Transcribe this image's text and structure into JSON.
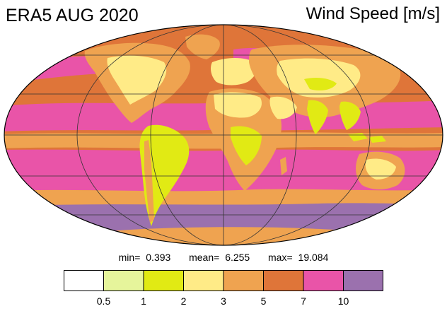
{
  "header": {
    "title_left": "ERA5 AUG 2020",
    "title_right": "Wind Speed [m/s]"
  },
  "stats": {
    "min_label": "min=",
    "min_value": "0.393",
    "mean_label": "mean=",
    "mean_value": "6.255",
    "max_label": "max=",
    "max_value": "19.084"
  },
  "colorbar": {
    "colors": [
      "#ffffff",
      "#e6f59b",
      "#e1ea14",
      "#ffeb87",
      "#efa350",
      "#df7539",
      "#e954a8",
      "#9b71ae"
    ],
    "labels": [
      "0.5",
      "1",
      "2",
      "3",
      "5",
      "7",
      "10"
    ]
  },
  "map": {
    "projection": "Mollweide",
    "ocean_colors": {
      "calm": "#efa350",
      "moderate": "#df7539",
      "strong": "#e954a8",
      "extreme": "#9b71ae"
    },
    "land_colors": {
      "light": "#e1ea14",
      "lighter": "#ffeb87",
      "moderate": "#efa350"
    }
  }
}
